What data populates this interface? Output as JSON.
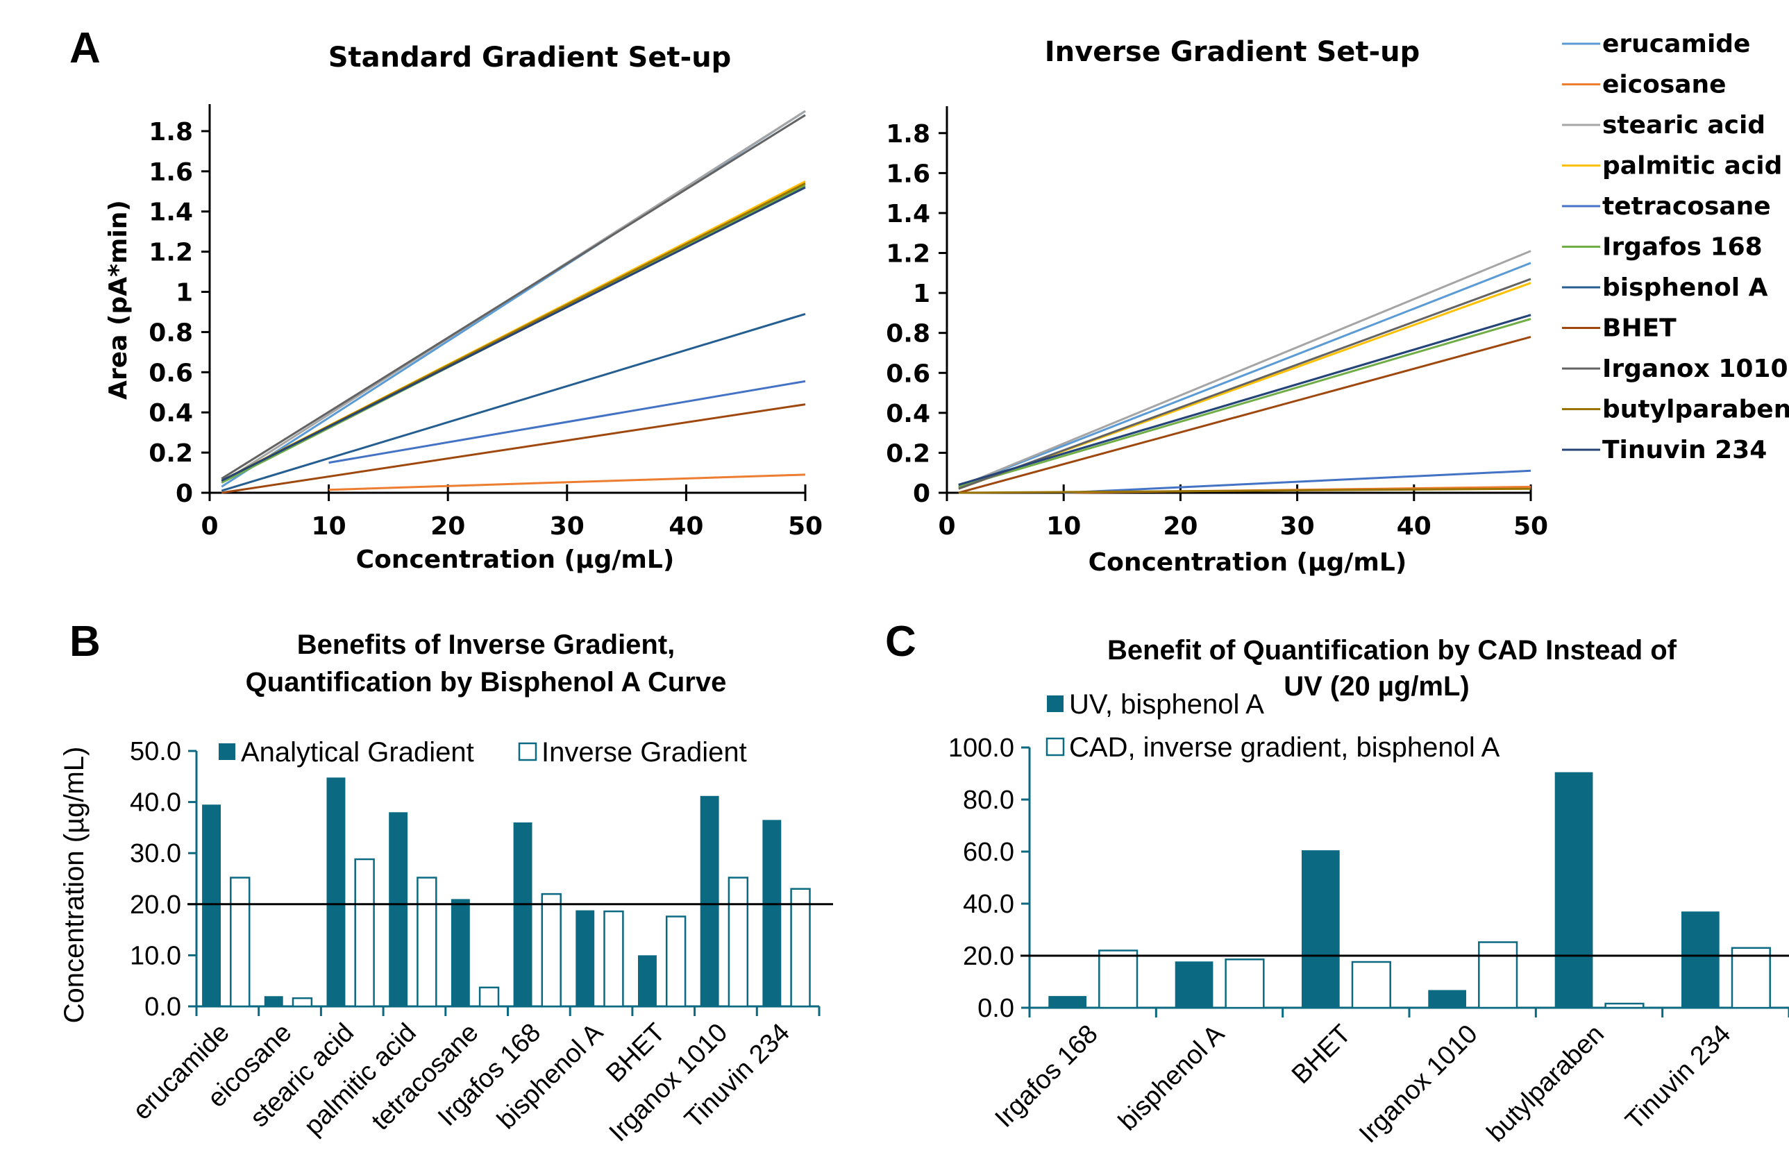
{
  "panels": {
    "a": "A",
    "b": "B",
    "c": "C"
  },
  "colors": {
    "erucamide": "#5b9bd5",
    "eicosane": "#ed7d31",
    "stearic acid": "#a5a5a5",
    "palmitic acid": "#ffc000",
    "tetracosane": "#4472c4",
    "Irgafos 168": "#70ad47",
    "bisphenol A": "#255e91",
    "BHET": "#9e480e",
    "Irganox 1010": "#636363",
    "butylparaben": "#997300",
    "Tinuvin 234": "#264478",
    "bar_fill": "#0b6a82",
    "bar_outline": "#0b6a82"
  },
  "chart_data": [
    {
      "id": "standard",
      "type": "line",
      "title": "Standard Gradient Set-up",
      "xlabel": "Concentration (µg/mL)",
      "ylabel": "Area (pA*min)",
      "xlim": [
        0,
        50
      ],
      "ylim": [
        0,
        1.9
      ],
      "xticks": [
        "0",
        "10",
        "20",
        "30",
        "40",
        "50"
      ],
      "yticks": [
        "0",
        "0.2",
        "0.4",
        "0.6",
        "0.8",
        "1",
        "1.2",
        "1.4",
        "1.6",
        "1.8"
      ],
      "series": [
        {
          "name": "erucamide",
          "x": [
            1,
            50
          ],
          "y": [
            0.03,
            1.9
          ]
        },
        {
          "name": "eicosane",
          "x": [
            10,
            50
          ],
          "y": [
            0.015,
            0.09
          ]
        },
        {
          "name": "stearic acid",
          "x": [
            1,
            50
          ],
          "y": [
            0.05,
            1.9
          ]
        },
        {
          "name": "palmitic acid",
          "x": [
            1,
            50
          ],
          "y": [
            0.06,
            1.55
          ]
        },
        {
          "name": "tetracosane",
          "x": [
            10,
            50
          ],
          "y": [
            0.15,
            0.555
          ]
        },
        {
          "name": "Irgafos 168",
          "x": [
            1,
            50
          ],
          "y": [
            0.05,
            1.53
          ]
        },
        {
          "name": "bisphenol A",
          "x": [
            1,
            50
          ],
          "y": [
            0.01,
            0.89
          ]
        },
        {
          "name": "BHET",
          "x": [
            1,
            50
          ],
          "y": [
            0.0,
            0.44
          ]
        },
        {
          "name": "Irganox 1010",
          "x": [
            1,
            50
          ],
          "y": [
            0.07,
            1.88
          ]
        },
        {
          "name": "butylparaben",
          "x": [
            1,
            50
          ],
          "y": [
            0.06,
            1.54
          ]
        },
        {
          "name": "Tinuvin 234",
          "x": [
            1,
            50
          ],
          "y": [
            0.06,
            1.52
          ]
        }
      ]
    },
    {
      "id": "inverse",
      "type": "line",
      "title": "Inverse Gradient Set-up",
      "xlabel": "Concentration (µg/mL)",
      "ylabel": "",
      "xlim": [
        0,
        50
      ],
      "ylim": [
        0,
        1.9
      ],
      "xticks": [
        "0",
        "10",
        "20",
        "30",
        "40",
        "50"
      ],
      "yticks": [
        "0",
        "0.2",
        "0.4",
        "0.6",
        "0.8",
        "1",
        "1.2",
        "1.4",
        "1.6",
        "1.8"
      ],
      "legend": "right",
      "series": [
        {
          "name": "erucamide",
          "x": [
            1,
            50
          ],
          "y": [
            0.03,
            1.15
          ]
        },
        {
          "name": "eicosane",
          "x": [
            10,
            50
          ],
          "y": [
            0.0,
            0.03
          ]
        },
        {
          "name": "stearic acid",
          "x": [
            1,
            50
          ],
          "y": [
            0.03,
            1.21
          ]
        },
        {
          "name": "palmitic acid",
          "x": [
            1,
            50
          ],
          "y": [
            0.02,
            1.05
          ]
        },
        {
          "name": "tetracosane",
          "x": [
            10,
            50
          ],
          "y": [
            0.0,
            0.11
          ]
        },
        {
          "name": "Irgafos 168",
          "x": [
            1,
            50
          ],
          "y": [
            0.03,
            0.87
          ]
        },
        {
          "name": "bisphenol A",
          "x": [
            1,
            50
          ],
          "y": [
            0.04,
            0.89
          ]
        },
        {
          "name": "BHET",
          "x": [
            1,
            50
          ],
          "y": [
            0.0,
            0.78
          ]
        },
        {
          "name": "Irganox 1010",
          "x": [
            1,
            50
          ],
          "y": [
            0.02,
            1.07
          ]
        },
        {
          "name": "butylparaben",
          "x": [
            1,
            50
          ],
          "y": [
            0.0,
            0.02
          ]
        },
        {
          "name": "Tinuvin 234",
          "x": [
            1,
            50
          ],
          "y": [
            0.04,
            0.89
          ]
        }
      ]
    },
    {
      "id": "gradient-benefit",
      "type": "bar",
      "title": "Benefits of Inverse Gradient, Quantification by Bisphenol A Curve",
      "title_lines": [
        "Benefits of Inverse Gradient,",
        "Quantification by Bisphenol A Curve"
      ],
      "xlabel": "",
      "ylabel": "Concentration (µg/mL)",
      "ylim": [
        0,
        50
      ],
      "yticks": [
        "0.0",
        "10.0",
        "20.0",
        "30.0",
        "40.0",
        "50.0"
      ],
      "reference_line": 20,
      "legend": "top",
      "categories": [
        "erucamide",
        "eicosane",
        "stearic acid",
        "palmitic acid",
        "tetracosane",
        "Irgafos 168",
        "bisphenol A",
        "BHET",
        "Irganox 1010",
        "Tinuvin 234"
      ],
      "series": [
        {
          "name": "Analytical Gradient",
          "style": "filled",
          "values": [
            39.5,
            2.0,
            44.8,
            38.0,
            21.0,
            36.0,
            18.8,
            10.0,
            41.2,
            36.5
          ]
        },
        {
          "name": "Inverse Gradient",
          "style": "outline",
          "values": [
            25.2,
            1.6,
            28.8,
            25.2,
            3.7,
            22.0,
            18.6,
            17.6,
            25.2,
            23.0
          ]
        }
      ]
    },
    {
      "id": "cad-benefit",
      "type": "bar",
      "title": "Benefit of Quantification by CAD Instead of UV (20 µg/mL)",
      "title_lines": [
        "Benefit of Quantification by CAD Instead of",
        "UV (20 µg/mL)"
      ],
      "xlabel": "",
      "ylabel": "",
      "ylim": [
        0,
        100
      ],
      "yticks": [
        "0.0",
        "20.0",
        "40.0",
        "60.0",
        "80.0",
        "100.0"
      ],
      "reference_line": 20,
      "legend": "top-left",
      "categories": [
        "Irgafos 168",
        "bisphenol A",
        "BHET",
        "Irganox 1010",
        "butylparaben",
        "Tinuvin 234"
      ],
      "series": [
        {
          "name": "UV, bisphenol A",
          "style": "filled",
          "values": [
            4.5,
            17.8,
            60.5,
            6.8,
            90.5,
            37.0
          ]
        },
        {
          "name": "CAD, inverse gradient, bisphenol A",
          "style": "outline",
          "values": [
            22.0,
            18.6,
            17.6,
            25.2,
            1.6,
            23.0
          ]
        }
      ]
    }
  ]
}
